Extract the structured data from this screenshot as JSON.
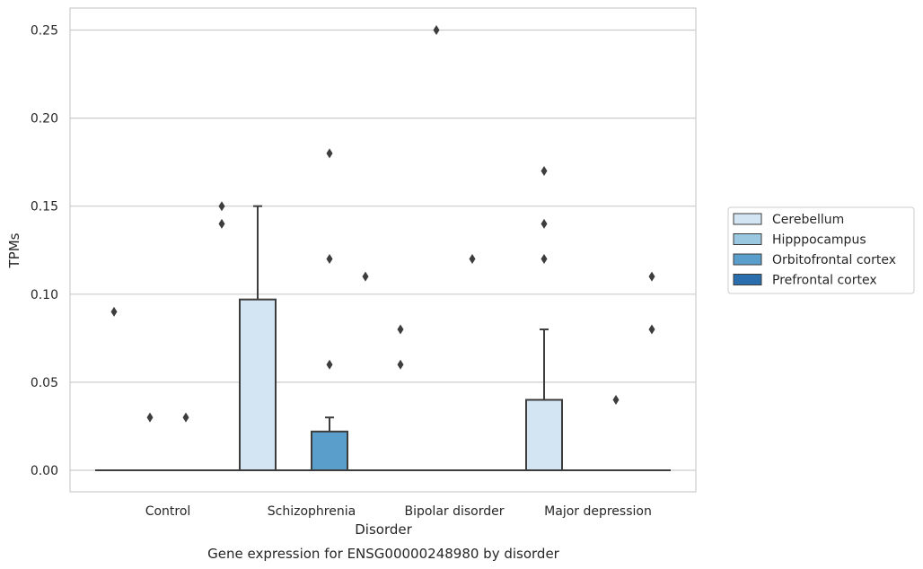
{
  "chart_data": {
    "type": "box",
    "caption": "Gene expression for ENSG00000248980 by disorder",
    "xlabel": "Disorder",
    "ylabel": "TPMs",
    "ylim": [
      -0.012,
      0.263
    ],
    "yticks": [
      0.0,
      0.05,
      0.1,
      0.15,
      0.2,
      0.25
    ],
    "ytick_labels": [
      "0.00",
      "0.05",
      "0.10",
      "0.15",
      "0.20",
      "0.25"
    ],
    "grid": true,
    "legend_position": "right",
    "categories": [
      "Control",
      "Schizophrenia",
      "Bipolar disorder",
      "Major depression"
    ],
    "series": [
      {
        "name": "Cerebellum",
        "color": "#d3e4f3",
        "boxes": [
          {
            "q1": 0,
            "median": 0,
            "q3": 0,
            "whisker_low": 0,
            "whisker_high": 0,
            "outliers": [
              0.09
            ]
          },
          {
            "q1": 0,
            "median": 0,
            "q3": 0.097,
            "whisker_low": 0,
            "whisker_high": 0.15,
            "outliers": []
          },
          {
            "q1": 0,
            "median": 0,
            "q3": 0,
            "whisker_low": 0,
            "whisker_high": 0,
            "outliers": [
              0.08,
              0.06
            ]
          },
          {
            "q1": 0,
            "median": 0,
            "q3": 0.04,
            "whisker_low": 0,
            "whisker_high": 0.08,
            "outliers": [
              0.17,
              0.14,
              0.12
            ]
          }
        ]
      },
      {
        "name": "Hipppocampus",
        "color": "#9ac8e0",
        "boxes": [
          {
            "q1": 0,
            "median": 0,
            "q3": 0,
            "whisker_low": 0,
            "whisker_high": 0,
            "outliers": [
              0.03
            ]
          },
          {
            "q1": 0,
            "median": 0,
            "q3": 0,
            "whisker_low": 0,
            "whisker_high": 0,
            "outliers": []
          },
          {
            "q1": 0,
            "median": 0,
            "q3": 0,
            "whisker_low": 0,
            "whisker_high": 0,
            "outliers": [
              0.25
            ]
          },
          {
            "q1": 0,
            "median": 0,
            "q3": 0,
            "whisker_low": 0,
            "whisker_high": 0,
            "outliers": []
          }
        ]
      },
      {
        "name": "Orbitofrontal cortex",
        "color": "#5a9fcb",
        "boxes": [
          {
            "q1": 0,
            "median": 0,
            "q3": 0,
            "whisker_low": 0,
            "whisker_high": 0,
            "outliers": [
              0.03
            ]
          },
          {
            "q1": 0,
            "median": 0,
            "q3": 0.022,
            "whisker_low": 0,
            "whisker_high": 0.03,
            "outliers": [
              0.18,
              0.12,
              0.06
            ]
          },
          {
            "q1": 0,
            "median": 0,
            "q3": 0,
            "whisker_low": 0,
            "whisker_high": 0,
            "outliers": [
              0.12
            ]
          },
          {
            "q1": 0,
            "median": 0,
            "q3": 0,
            "whisker_low": 0,
            "whisker_high": 0,
            "outliers": [
              0.04
            ]
          }
        ]
      },
      {
        "name": "Prefrontal cortex",
        "color": "#2a6ead",
        "boxes": [
          {
            "q1": 0,
            "median": 0,
            "q3": 0,
            "whisker_low": 0,
            "whisker_high": 0,
            "outliers": [
              0.15,
              0.14
            ]
          },
          {
            "q1": 0,
            "median": 0,
            "q3": 0,
            "whisker_low": 0,
            "whisker_high": 0,
            "outliers": [
              0.11
            ]
          },
          {
            "q1": 0,
            "median": 0,
            "q3": 0,
            "whisker_low": 0,
            "whisker_high": 0,
            "outliers": []
          },
          {
            "q1": 0,
            "median": 0,
            "q3": 0,
            "whisker_low": 0,
            "whisker_high": 0,
            "outliers": [
              0.11,
              0.08
            ]
          }
        ]
      }
    ]
  }
}
